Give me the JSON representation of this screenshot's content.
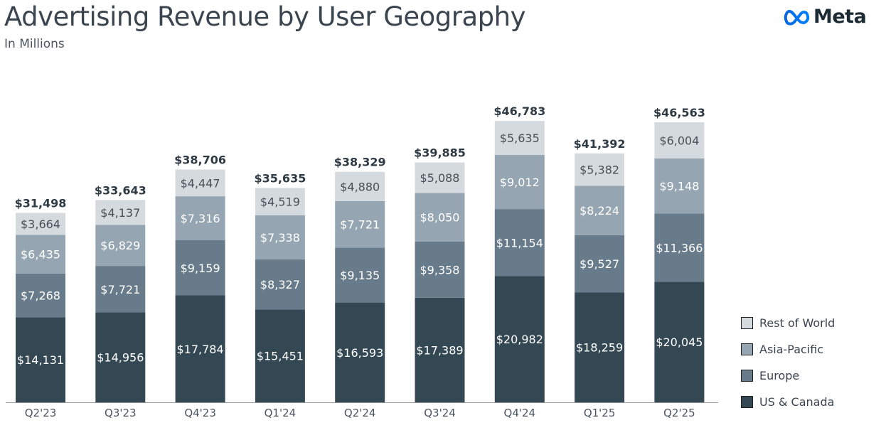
{
  "header": {
    "title": "Advertising Revenue by User Geography",
    "subtitle": "In Millions",
    "logo_text": "Meta"
  },
  "chart_data": {
    "type": "bar",
    "stacked": true,
    "title": "Advertising Revenue by User Geography",
    "subtitle": "In Millions",
    "categories": [
      "Q2'23",
      "Q3'23",
      "Q4'23",
      "Q1'24",
      "Q2'24",
      "Q3'24",
      "Q4'24",
      "Q1'25",
      "Q2'25"
    ],
    "series": [
      {
        "name": "US & Canada",
        "color": "#344854",
        "values": [
          14131,
          14956,
          17784,
          15451,
          16593,
          17389,
          20982,
          18259,
          20045
        ]
      },
      {
        "name": "Europe",
        "color": "#687b8b",
        "values": [
          7268,
          7721,
          9159,
          8327,
          9135,
          9358,
          11154,
          9527,
          11366
        ]
      },
      {
        "name": "Asia-Pacific",
        "color": "#95a5b2",
        "values": [
          6435,
          6829,
          7316,
          7338,
          7721,
          8050,
          9012,
          8224,
          9148
        ]
      },
      {
        "name": "Rest of World",
        "color": "#d5dadf",
        "values": [
          3664,
          4137,
          4447,
          4519,
          4880,
          5088,
          5635,
          5382,
          6004
        ]
      }
    ],
    "totals": [
      31498,
      33643,
      38706,
      35635,
      38329,
      39885,
      46783,
      41392,
      46563
    ],
    "value_prefix": "$",
    "grid": false,
    "legend_position": "right"
  }
}
